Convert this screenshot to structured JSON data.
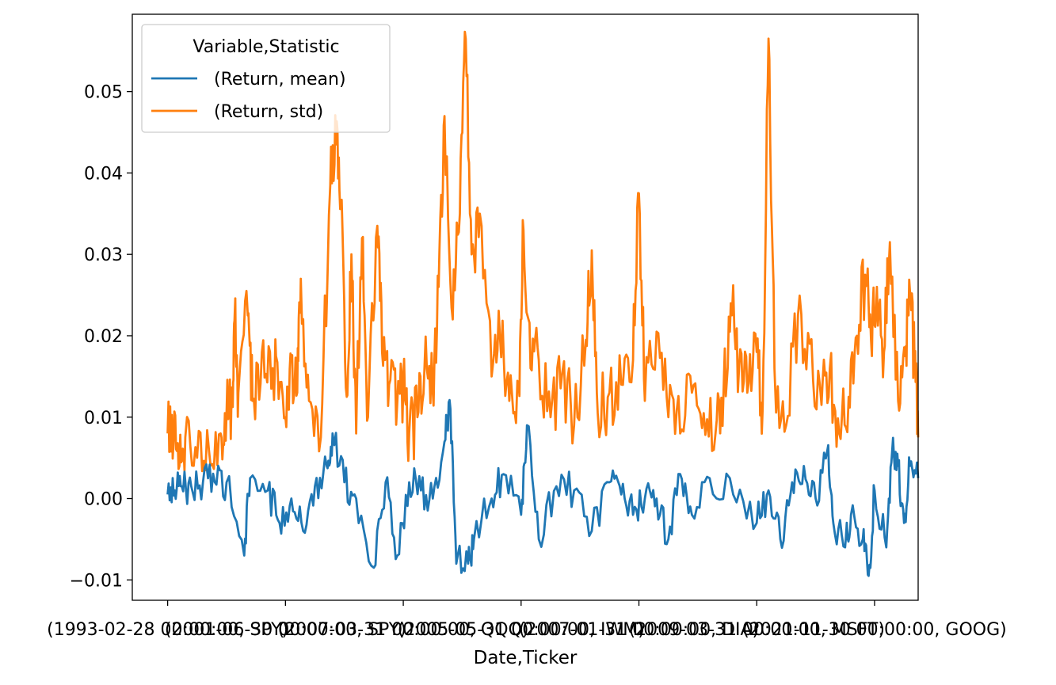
{
  "chart_data": {
    "type": "line",
    "title": "",
    "xlabel": "Date,Ticker",
    "ylabel": "",
    "ylim": [
      -0.0125,
      0.0595
    ],
    "yticks": [
      -0.01,
      0.0,
      0.01,
      0.02,
      0.03,
      0.04,
      0.05
    ],
    "ytick_labels": [
      "−0.01",
      "0.00",
      "0.01",
      "0.02",
      "0.03",
      "0.04",
      "0.05"
    ],
    "xticks": [
      0,
      1,
      2,
      3,
      4,
      5,
      6
    ],
    "xlim": [
      -0.3,
      6.37
    ],
    "xtick_labels": [
      "(1993-02-28 00:00:00, SPY)",
      "(2001-06-30 00:00:00, SPY)",
      "(2007-03-31 00:00:00, QQQ)",
      "(2005-05-31 00:00:00, IWM)",
      "(2007-01-31 00:00:00, DIA)",
      "(2009-03-31 00:00:00, MSFT)",
      "(2021-11-30 00:00:00, GOOG)"
    ],
    "grid": false,
    "legend": {
      "title": "Variable,Statistic",
      "placement": "upper-left",
      "entries": [
        "(Return, mean)",
        "(Return, std)"
      ]
    },
    "series": [
      {
        "name": "(Return, mean)",
        "color": "#1f77b4",
        "anchors": [
          [
            0.0,
            0.0005
          ],
          [
            0.06,
            0.001
          ],
          [
            0.12,
            0.0015
          ],
          [
            0.2,
            0.0015
          ],
          [
            0.3,
            0.002
          ],
          [
            0.4,
            0.002
          ],
          [
            0.5,
            0.002
          ],
          [
            0.65,
            -0.007
          ],
          [
            0.7,
            0.0025
          ],
          [
            0.85,
            0.001
          ],
          [
            0.95,
            -0.003
          ],
          [
            1.05,
            0.0
          ],
          [
            1.15,
            -0.004
          ],
          [
            1.25,
            0.0015
          ],
          [
            1.35,
            0.004
          ],
          [
            1.4,
            0.008
          ],
          [
            1.5,
            0.002
          ],
          [
            1.6,
            0.0
          ],
          [
            1.75,
            -0.0085
          ],
          [
            1.85,
            0.002
          ],
          [
            1.95,
            -0.007
          ],
          [
            2.05,
            0.002
          ],
          [
            2.15,
            0.001
          ],
          [
            2.25,
            0.0
          ],
          [
            2.35,
            0.007
          ],
          [
            2.4,
            0.011
          ],
          [
            2.45,
            -0.008
          ],
          [
            2.55,
            -0.008
          ],
          [
            2.6,
            -0.005
          ],
          [
            2.75,
            0.0
          ],
          [
            2.85,
            0.003
          ],
          [
            3.0,
            -0.002
          ],
          [
            3.05,
            0.009
          ],
          [
            3.15,
            -0.005
          ],
          [
            3.3,
            0.0015
          ],
          [
            3.45,
            0.001
          ],
          [
            3.6,
            -0.004
          ],
          [
            3.75,
            0.002
          ],
          [
            3.85,
            0.0005
          ],
          [
            3.95,
            -0.002
          ],
          [
            4.05,
            0.0
          ],
          [
            4.15,
            0.0
          ],
          [
            4.25,
            -0.005
          ],
          [
            4.35,
            0.003
          ],
          [
            4.45,
            -0.002
          ],
          [
            4.6,
            0.0025
          ],
          [
            4.8,
            0.0005
          ],
          [
            5.0,
            -0.003
          ],
          [
            5.1,
            0.001
          ],
          [
            5.2,
            -0.005
          ],
          [
            5.3,
            0.002
          ],
          [
            5.4,
            0.004
          ],
          [
            5.5,
            0.0
          ],
          [
            5.6,
            0.006
          ],
          [
            5.65,
            -0.003
          ],
          [
            5.75,
            -0.006
          ],
          [
            5.8,
            -0.002
          ],
          [
            5.9,
            -0.005
          ],
          [
            5.95,
            -0.0095
          ],
          [
            6.0,
            0.001
          ],
          [
            6.1,
            -0.006
          ],
          [
            6.15,
            0.006
          ],
          [
            6.2,
            0.004
          ],
          [
            6.25,
            -0.003
          ],
          [
            6.3,
            0.004
          ],
          [
            6.37,
            0.0025
          ]
        ]
      },
      {
        "name": "(Return, std)",
        "color": "#ff7f0e",
        "anchors": [
          [
            0.0,
            0.008
          ],
          [
            0.05,
            0.007
          ],
          [
            0.1,
            0.004
          ],
          [
            0.15,
            0.0075
          ],
          [
            0.25,
            0.005
          ],
          [
            0.35,
            0.006
          ],
          [
            0.45,
            0.008
          ],
          [
            0.5,
            0.0105
          ],
          [
            0.55,
            0.0115
          ],
          [
            0.57,
            0.023
          ],
          [
            0.6,
            0.013
          ],
          [
            0.68,
            0.0225
          ],
          [
            0.72,
            0.012
          ],
          [
            0.8,
            0.018
          ],
          [
            0.88,
            0.0135
          ],
          [
            0.92,
            0.0175
          ],
          [
            1.0,
            0.01
          ],
          [
            1.05,
            0.0175
          ],
          [
            1.1,
            0.013
          ],
          [
            1.13,
            0.027
          ],
          [
            1.2,
            0.012
          ],
          [
            1.3,
            0.0075
          ],
          [
            1.38,
            0.0385
          ],
          [
            1.43,
            0.0435
          ],
          [
            1.47,
            0.036
          ],
          [
            1.52,
            0.0125
          ],
          [
            1.56,
            0.03
          ],
          [
            1.6,
            0.008
          ],
          [
            1.65,
            0.032
          ],
          [
            1.7,
            0.01
          ],
          [
            1.78,
            0.0335
          ],
          [
            1.82,
            0.018
          ],
          [
            1.88,
            0.014
          ],
          [
            1.95,
            0.012
          ],
          [
            2.0,
            0.014
          ],
          [
            2.05,
            0.008
          ],
          [
            2.12,
            0.01
          ],
          [
            2.18,
            0.016
          ],
          [
            2.25,
            0.013
          ],
          [
            2.3,
            0.026
          ],
          [
            2.35,
            0.047
          ],
          [
            2.42,
            0.022
          ],
          [
            2.48,
            0.035
          ],
          [
            2.53,
            0.0565
          ],
          [
            2.58,
            0.03
          ],
          [
            2.65,
            0.035
          ],
          [
            2.75,
            0.015
          ],
          [
            2.82,
            0.02
          ],
          [
            2.9,
            0.012
          ],
          [
            2.98,
            0.014
          ],
          [
            3.02,
            0.033
          ],
          [
            3.08,
            0.016
          ],
          [
            3.15,
            0.017
          ],
          [
            3.25,
            0.01
          ],
          [
            3.35,
            0.0155
          ],
          [
            3.45,
            0.009
          ],
          [
            3.55,
            0.0195
          ],
          [
            3.6,
            0.0305
          ],
          [
            3.65,
            0.0105
          ],
          [
            3.75,
            0.013
          ],
          [
            3.85,
            0.014
          ],
          [
            3.95,
            0.017
          ],
          [
            4.0,
            0.0375
          ],
          [
            4.05,
            0.012
          ],
          [
            4.15,
            0.0205
          ],
          [
            4.25,
            0.01
          ],
          [
            4.35,
            0.008
          ],
          [
            4.45,
            0.013
          ],
          [
            4.55,
            0.0105
          ],
          [
            4.65,
            0.008
          ],
          [
            4.72,
            0.014
          ],
          [
            4.78,
            0.024
          ],
          [
            4.85,
            0.016
          ],
          [
            4.92,
            0.013
          ],
          [
            5.0,
            0.018
          ],
          [
            5.05,
            0.011
          ],
          [
            5.1,
            0.0565
          ],
          [
            5.15,
            0.016
          ],
          [
            5.25,
            0.009
          ],
          [
            5.35,
            0.0225
          ],
          [
            5.45,
            0.019
          ],
          [
            5.55,
            0.0115
          ],
          [
            5.62,
            0.016
          ],
          [
            5.7,
            0.008
          ],
          [
            5.78,
            0.0125
          ],
          [
            5.85,
            0.02
          ],
          [
            5.92,
            0.0275
          ],
          [
            5.97,
            0.0195
          ],
          [
            6.02,
            0.026
          ],
          [
            6.08,
            0.018
          ],
          [
            6.13,
            0.0315
          ],
          [
            6.2,
            0.012
          ],
          [
            6.26,
            0.0175
          ],
          [
            6.3,
            0.0255
          ],
          [
            6.34,
            0.016
          ],
          [
            6.37,
            0.0075
          ]
        ]
      }
    ]
  }
}
